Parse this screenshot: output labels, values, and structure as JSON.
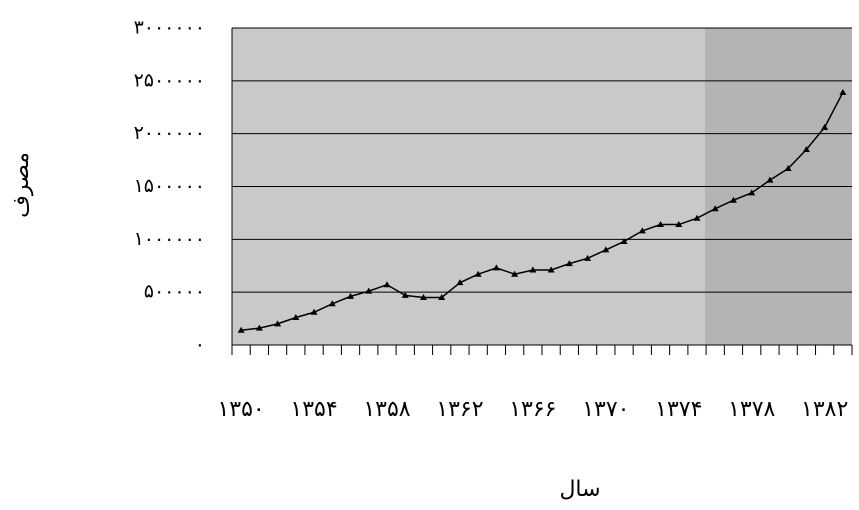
{
  "chart_data": {
    "type": "line",
    "x_label": "سال",
    "y_label": "مصرف",
    "categories": [
      "۱۳۵۰",
      null,
      null,
      null,
      "۱۳۵۴",
      null,
      null,
      null,
      "۱۳۵۸",
      null,
      null,
      null,
      "۱۳۶۲",
      null,
      null,
      null,
      "۱۳۶۶",
      null,
      null,
      null,
      "۱۳۷۰",
      null,
      null,
      null,
      "۱۳۷۴",
      null,
      null,
      null,
      "۱۳۷۸",
      null,
      null,
      null,
      "۱۳۸۲",
      null
    ],
    "values": [
      140000,
      160000,
      200000,
      260000,
      310000,
      390000,
      460000,
      510000,
      570000,
      470000,
      450000,
      450000,
      590000,
      670000,
      730000,
      670000,
      710000,
      710000,
      770000,
      820000,
      900000,
      980000,
      1080000,
      1140000,
      1140000,
      1200000,
      1290000,
      1370000,
      1440000,
      1560000,
      1670000,
      1850000,
      2060000,
      2390000
    ],
    "color": "#000000",
    "ylim": [
      0,
      3000000
    ],
    "yticks": [
      {
        "value": 0,
        "label": "۰"
      },
      {
        "value": 500000,
        "label": "۵۰۰۰۰۰"
      },
      {
        "value": 1000000,
        "label": "۱۰۰۰۰۰۰"
      },
      {
        "value": 1500000,
        "label": "۱۵۰۰۰۰۰"
      },
      {
        "value": 2000000,
        "label": "۲۰۰۰۰۰۰"
      },
      {
        "value": 2500000,
        "label": "۲۵۰۰۰۰۰"
      },
      {
        "value": 3000000,
        "label": "۳۰۰۰۰۰۰"
      }
    ],
    "grid": true
  }
}
